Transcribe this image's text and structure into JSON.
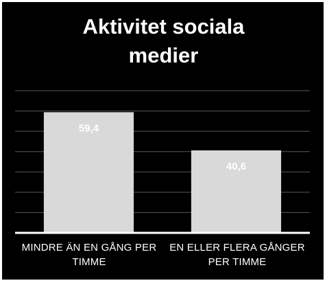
{
  "chart_data": {
    "type": "bar",
    "title_lines": [
      "Aktivitet sociala",
      "medier"
    ],
    "categories": [
      [
        "MINDRE ÄN EN GÅNG PER",
        "TIMME"
      ],
      [
        "EN ELLER FLERA GÅNGER",
        "PER TIMME"
      ]
    ],
    "values": [
      59.4,
      40.6
    ],
    "data_labels": [
      "59,4",
      "40,6"
    ],
    "ylim": [
      0,
      70
    ],
    "grid": true,
    "bar_color": "#d9d9d9",
    "background": "#000000",
    "grid_color": "#595959",
    "text_color": "#ffffff"
  }
}
